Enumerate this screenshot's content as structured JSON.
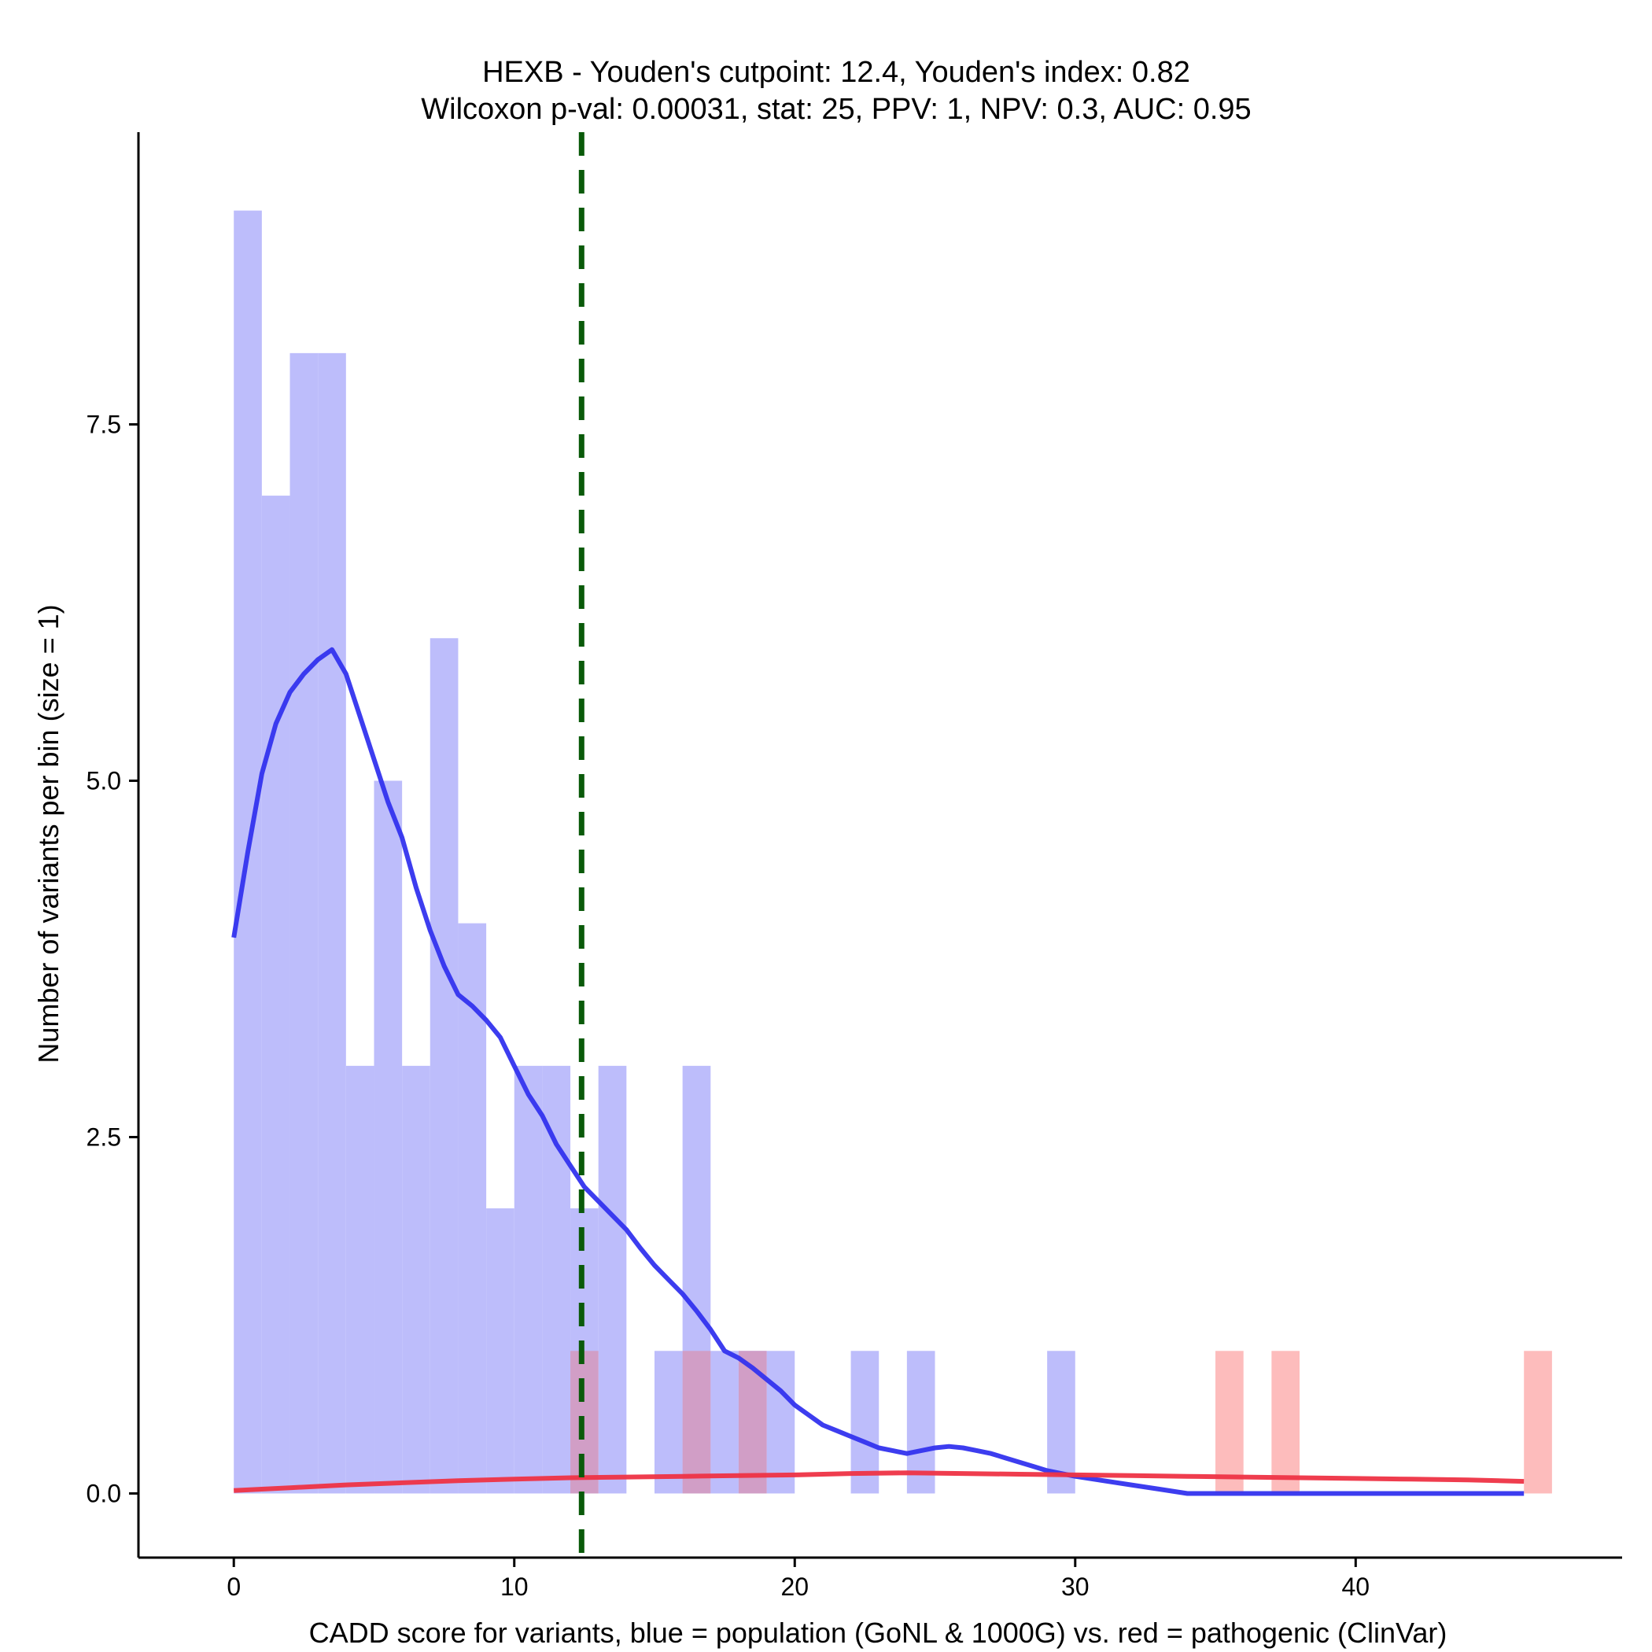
{
  "chart_data": {
    "type": "bar",
    "title_line1": "HEXB - Youden's cutpoint: 12.4, Youden's index: 0.82",
    "title_line2": "Wilcoxon p-val: 0.00031, stat: 25, PPV: 1, NPV: 0.3, AUC: 0.95",
    "xlabel": "CADD score for variants, blue = population (GoNL & 1000G) vs. red = pathogenic (ClinVar)",
    "ylabel": "Number of variants per bin (size = 1)",
    "xlim": [
      -3.4,
      49.5
    ],
    "ylim": [
      -0.45,
      9.55
    ],
    "x_ticks": [
      0,
      10,
      20,
      30,
      40
    ],
    "x_tick_labels": [
      "0",
      "10",
      "20",
      "30",
      "40"
    ],
    "y_ticks": [
      0,
      2.5,
      5,
      7.5
    ],
    "y_tick_labels": [
      "0.0",
      "2.5",
      "5.0",
      "7.5"
    ],
    "bin_width": 1,
    "cutpoint": 12.4,
    "colors": {
      "population_bar": "#bdbdfb",
      "pathogenic_bar": "#fdbcbc",
      "overlap_bar": "#d19ec6",
      "population_line": "#3333ee",
      "pathogenic_line": "#ee3344",
      "cutpoint_line": "#0a5a0a"
    },
    "series": [
      {
        "name": "population (GoNL & 1000G)",
        "bins": [
          {
            "x0": 0,
            "count": 9
          },
          {
            "x0": 1,
            "count": 7
          },
          {
            "x0": 2,
            "count": 8
          },
          {
            "x0": 3,
            "count": 8
          },
          {
            "x0": 4,
            "count": 3
          },
          {
            "x0": 5,
            "count": 5
          },
          {
            "x0": 6,
            "count": 3
          },
          {
            "x0": 7,
            "count": 6
          },
          {
            "x0": 8,
            "count": 4
          },
          {
            "x0": 9,
            "count": 2
          },
          {
            "x0": 10,
            "count": 3
          },
          {
            "x0": 11,
            "count": 3
          },
          {
            "x0": 12,
            "count": 2
          },
          {
            "x0": 13,
            "count": 3
          },
          {
            "x0": 15,
            "count": 1
          },
          {
            "x0": 16,
            "count": 3
          },
          {
            "x0": 17,
            "count": 1
          },
          {
            "x0": 18,
            "count": 1
          },
          {
            "x0": 19,
            "count": 1
          },
          {
            "x0": 22,
            "count": 1
          },
          {
            "x0": 24,
            "count": 1
          },
          {
            "x0": 29,
            "count": 1
          }
        ],
        "density_curve": [
          [
            0,
            3.9
          ],
          [
            0.5,
            4.5
          ],
          [
            1,
            5.05
          ],
          [
            1.5,
            5.4
          ],
          [
            2,
            5.62
          ],
          [
            2.5,
            5.75
          ],
          [
            3,
            5.85
          ],
          [
            3.5,
            5.92
          ],
          [
            4,
            5.75
          ],
          [
            4.5,
            5.45
          ],
          [
            5,
            5.15
          ],
          [
            5.5,
            4.85
          ],
          [
            6,
            4.6
          ],
          [
            6.5,
            4.25
          ],
          [
            7,
            3.95
          ],
          [
            7.5,
            3.7
          ],
          [
            8,
            3.5
          ],
          [
            8.5,
            3.42
          ],
          [
            9,
            3.32
          ],
          [
            9.5,
            3.2
          ],
          [
            10,
            3.0
          ],
          [
            10.5,
            2.8
          ],
          [
            11,
            2.65
          ],
          [
            11.5,
            2.45
          ],
          [
            12,
            2.3
          ],
          [
            12.5,
            2.15
          ],
          [
            13,
            2.05
          ],
          [
            13.5,
            1.95
          ],
          [
            14,
            1.85
          ],
          [
            14.5,
            1.72
          ],
          [
            15,
            1.6
          ],
          [
            15.5,
            1.5
          ],
          [
            16,
            1.4
          ],
          [
            16.5,
            1.28
          ],
          [
            17,
            1.15
          ],
          [
            17.5,
            1.0
          ],
          [
            18,
            0.95
          ],
          [
            18.5,
            0.88
          ],
          [
            19,
            0.8
          ],
          [
            19.5,
            0.72
          ],
          [
            20,
            0.62
          ],
          [
            20.5,
            0.55
          ],
          [
            21,
            0.48
          ],
          [
            21.5,
            0.44
          ],
          [
            22,
            0.4
          ],
          [
            22.5,
            0.36
          ],
          [
            23,
            0.32
          ],
          [
            23.5,
            0.3
          ],
          [
            24,
            0.28
          ],
          [
            24.5,
            0.3
          ],
          [
            25,
            0.32
          ],
          [
            25.5,
            0.33
          ],
          [
            26,
            0.32
          ],
          [
            26.5,
            0.3
          ],
          [
            27,
            0.28
          ],
          [
            27.5,
            0.25
          ],
          [
            28,
            0.22
          ],
          [
            28.5,
            0.19
          ],
          [
            29,
            0.16
          ],
          [
            29.5,
            0.14
          ],
          [
            30,
            0.12
          ],
          [
            31,
            0.09
          ],
          [
            32,
            0.06
          ],
          [
            33,
            0.03
          ],
          [
            34,
            0.0
          ],
          [
            40,
            0.0
          ],
          [
            46,
            0.0
          ]
        ]
      },
      {
        "name": "pathogenic (ClinVar)",
        "bins": [
          {
            "x0": 12,
            "count": 1
          },
          {
            "x0": 16,
            "count": 1
          },
          {
            "x0": 18,
            "count": 1
          },
          {
            "x0": 35,
            "count": 1
          },
          {
            "x0": 37,
            "count": 1
          },
          {
            "x0": 46,
            "count": 1
          }
        ],
        "density_curve": [
          [
            0,
            0.02
          ],
          [
            2,
            0.04
          ],
          [
            4,
            0.06
          ],
          [
            6,
            0.075
          ],
          [
            8,
            0.09
          ],
          [
            10,
            0.1
          ],
          [
            12,
            0.11
          ],
          [
            14,
            0.115
          ],
          [
            16,
            0.12
          ],
          [
            18,
            0.125
          ],
          [
            20,
            0.13
          ],
          [
            22,
            0.14
          ],
          [
            24,
            0.145
          ],
          [
            26,
            0.14
          ],
          [
            28,
            0.135
          ],
          [
            30,
            0.13
          ],
          [
            32,
            0.125
          ],
          [
            34,
            0.12
          ],
          [
            36,
            0.115
          ],
          [
            38,
            0.11
          ],
          [
            40,
            0.105
          ],
          [
            42,
            0.1
          ],
          [
            44,
            0.095
          ],
          [
            46,
            0.085
          ]
        ]
      }
    ]
  }
}
